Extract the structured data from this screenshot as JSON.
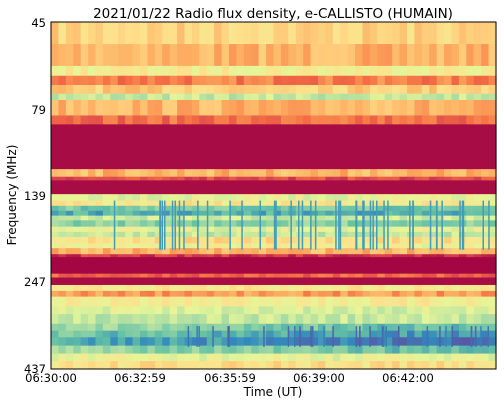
{
  "chart_data": {
    "type": "heatmap",
    "title": "2021/01/22  Radio flux density, e-CALLISTO (HUMAIN)",
    "xlabel": "Time (UT)",
    "ylabel": "Frequency (MHz)",
    "x_ticks": [
      "06:30:00",
      "06:32:59",
      "06:35:59",
      "06:39:00",
      "06:42:00"
    ],
    "y_ticks": [
      "45",
      "79",
      "139",
      "247",
      "437"
    ],
    "y_range_mhz": [
      45,
      437
    ],
    "y_scale": "log",
    "colormap": [
      "#9e0142",
      "#d53e4f",
      "#f46d43",
      "#fdae61",
      "#fee08b",
      "#e6f598",
      "#abdda4",
      "#66c2a5",
      "#3288bd",
      "#5e4fa2"
    ],
    "bands": [
      {
        "f1": 45,
        "f2": 52,
        "level": 0.42
      },
      {
        "f1": 52,
        "f2": 60,
        "level": 0.35
      },
      {
        "f1": 60,
        "f2": 64,
        "level": 0.5
      },
      {
        "f1": 64,
        "f2": 68,
        "level": 0.25
      },
      {
        "f1": 68,
        "f2": 72,
        "level": 0.4
      },
      {
        "f1": 72,
        "f2": 75,
        "level": 0.62
      },
      {
        "f1": 75,
        "f2": 83,
        "level": 0.35
      },
      {
        "f1": 83,
        "f2": 88,
        "level": 0.22
      },
      {
        "f1": 88,
        "f2": 118,
        "level": 0.02
      },
      {
        "f1": 118,
        "f2": 124,
        "level": 0.35
      },
      {
        "f1": 124,
        "f2": 127,
        "level": 0.15
      },
      {
        "f1": 127,
        "f2": 139,
        "level": 0.02
      },
      {
        "f1": 139,
        "f2": 145,
        "level": 0.55
      },
      {
        "f1": 145,
        "f2": 150,
        "level": 0.48
      },
      {
        "f1": 150,
        "f2": 155,
        "level": 0.75
      },
      {
        "f1": 155,
        "f2": 160,
        "level": 0.82
      },
      {
        "f1": 160,
        "f2": 165,
        "level": 0.6
      },
      {
        "f1": 165,
        "f2": 172,
        "level": 0.72
      },
      {
        "f1": 172,
        "f2": 178,
        "level": 0.55
      },
      {
        "f1": 178,
        "f2": 184,
        "level": 0.62
      },
      {
        "f1": 184,
        "f2": 192,
        "level": 0.45
      },
      {
        "f1": 192,
        "f2": 198,
        "level": 0.52
      },
      {
        "f1": 198,
        "f2": 206,
        "level": 0.35
      },
      {
        "f1": 206,
        "f2": 210,
        "level": 0.1
      },
      {
        "f1": 210,
        "f2": 234,
        "level": 0.01
      },
      {
        "f1": 234,
        "f2": 240,
        "level": 0.2
      },
      {
        "f1": 240,
        "f2": 252,
        "level": 0.02
      },
      {
        "f1": 252,
        "f2": 262,
        "level": 0.48
      },
      {
        "f1": 262,
        "f2": 272,
        "level": 0.3
      },
      {
        "f1": 272,
        "f2": 290,
        "level": 0.5
      },
      {
        "f1": 290,
        "f2": 305,
        "level": 0.58
      },
      {
        "f1": 305,
        "f2": 325,
        "level": 0.62
      },
      {
        "f1": 325,
        "f2": 340,
        "level": 0.72
      },
      {
        "f1": 340,
        "f2": 355,
        "level": 0.8
      },
      {
        "f1": 355,
        "f2": 375,
        "level": 0.86
      },
      {
        "f1": 375,
        "f2": 395,
        "level": 0.72
      },
      {
        "f1": 395,
        "f2": 415,
        "level": 0.55
      },
      {
        "f1": 415,
        "f2": 437,
        "level": 0.45
      }
    ]
  }
}
